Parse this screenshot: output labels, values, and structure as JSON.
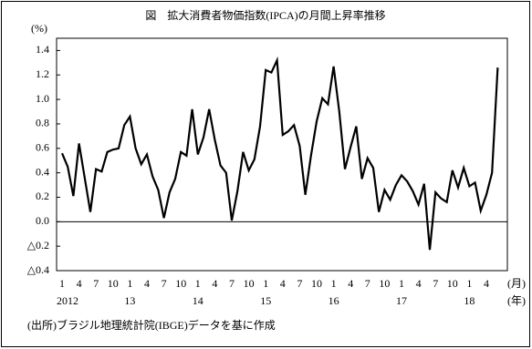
{
  "chart_data": {
    "type": "line",
    "title": "図　拡大消費者物価指数(IPCA)の月間上昇率推移",
    "y_unit": "(%)",
    "x_unit": "(月)",
    "year_unit": "(年)",
    "source": "(出所)ブラジル地理統計院(IBGE)データを基に作成",
    "categories": [
      "1",
      null,
      null,
      "4",
      null,
      null,
      "7",
      null,
      null,
      "10",
      null,
      null,
      "1",
      null,
      null,
      "4",
      null,
      null,
      "7",
      null,
      null,
      "10",
      null,
      null,
      "1",
      null,
      null,
      "4",
      null,
      null,
      "7",
      null,
      null,
      "10",
      null,
      null,
      "1",
      null,
      null,
      "4",
      null,
      null,
      "7",
      null,
      null,
      "10",
      null,
      null,
      "1",
      null,
      null,
      "4",
      null,
      null,
      "7",
      null,
      null,
      "10",
      null,
      null,
      "1",
      null,
      null,
      "4",
      null,
      null,
      "7",
      null,
      null,
      "10",
      null,
      null,
      "1",
      null,
      null,
      "4",
      null,
      null
    ],
    "year_labels": [
      "2012",
      "13",
      "14",
      "15",
      "16",
      "17",
      "18"
    ],
    "series": [
      {
        "name": "IPCA",
        "color": "#000000",
        "values": [
          0.56,
          0.45,
          0.21,
          0.64,
          0.36,
          0.08,
          0.43,
          0.41,
          0.57,
          0.59,
          0.6,
          0.79,
          0.86,
          0.6,
          0.47,
          0.55,
          0.37,
          0.26,
          0.03,
          0.24,
          0.35,
          0.57,
          0.54,
          0.92,
          0.55,
          0.69,
          0.92,
          0.67,
          0.46,
          0.4,
          0.01,
          0.25,
          0.57,
          0.42,
          0.51,
          0.78,
          1.24,
          1.22,
          1.32,
          0.71,
          0.74,
          0.79,
          0.62,
          0.22,
          0.54,
          0.82,
          1.01,
          0.96,
          1.27,
          0.9,
          0.43,
          0.61,
          0.78,
          0.35,
          0.52,
          0.44,
          0.08,
          0.26,
          0.18,
          0.3,
          0.38,
          0.33,
          0.25,
          0.14,
          0.31,
          -0.23,
          0.24,
          0.19,
          0.16,
          0.42,
          0.28,
          0.44,
          0.29,
          0.32,
          0.09,
          0.22,
          0.4,
          1.26
        ]
      }
    ],
    "ylim": [
      -0.4,
      1.5
    ],
    "yticks": [
      {
        "value": -0.4,
        "label": "△0.4"
      },
      {
        "value": -0.2,
        "label": "△0.2"
      },
      {
        "value": 0,
        "label": "0.0"
      },
      0.2,
      0.4,
      0.6,
      0.8,
      {
        "value": 1,
        "label": "1.0"
      },
      1.2,
      1.4
    ],
    "zero_line": true
  }
}
